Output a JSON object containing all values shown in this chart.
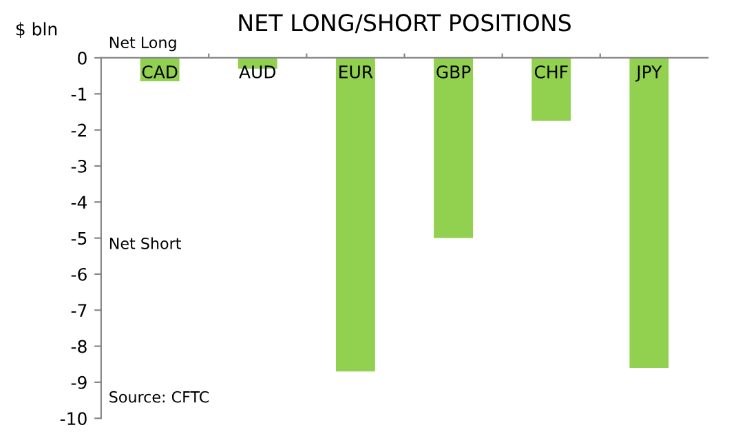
{
  "chart_data": {
    "type": "bar",
    "title": "NET LONG/SHORT POSITIONS",
    "ylabel": "$ bln",
    "categories": [
      "CAD",
      "AUD",
      "EUR",
      "GBP",
      "CHF",
      "JPY"
    ],
    "values": [
      -0.65,
      -0.3,
      -8.7,
      -5.0,
      -1.75,
      -8.6
    ],
    "color": "#92d050",
    "ylim": [
      -10,
      0
    ],
    "yticks": [
      0,
      -1,
      -2,
      -3,
      -4,
      -5,
      -6,
      -7,
      -8,
      -9,
      -10
    ],
    "grid": false,
    "annotations": [
      "Net Long",
      "Net Short",
      "Source: CFTC"
    ]
  }
}
